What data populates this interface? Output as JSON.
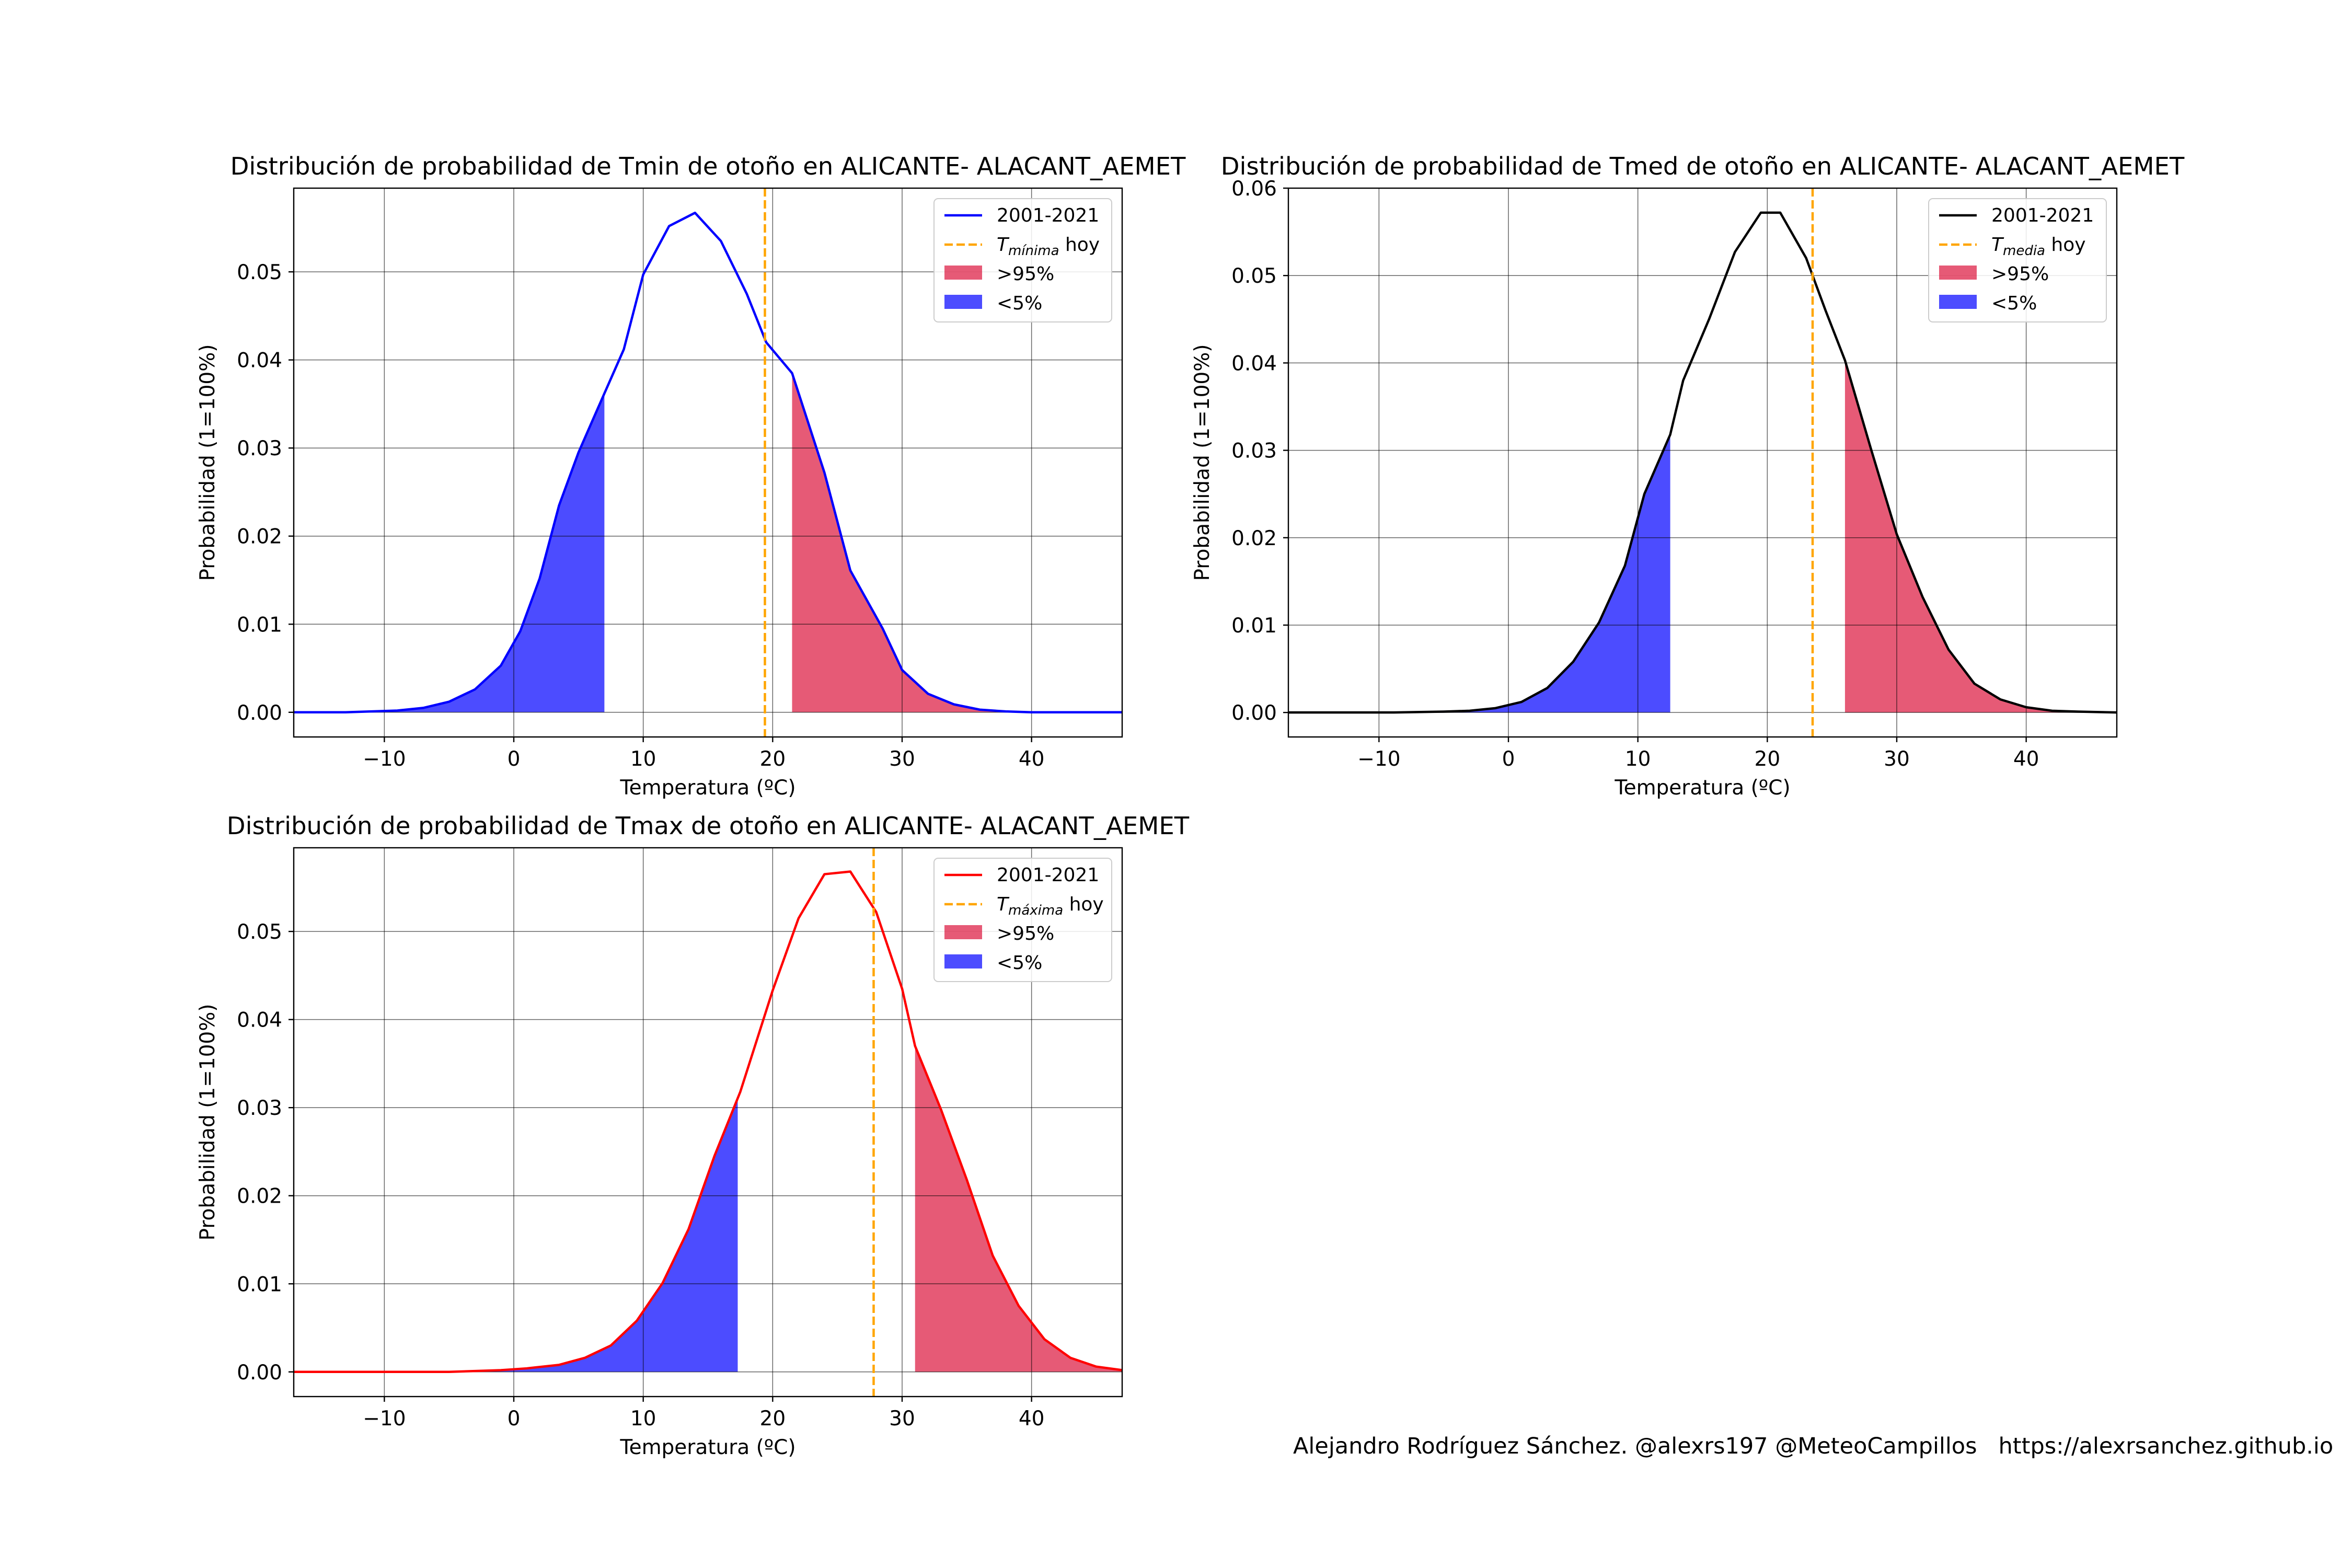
{
  "figure": {
    "credit": "Alejandro Rodríguez Sánchez. @alexrs197 @MeteoCampillos   https://alexrsanchez.github.io",
    "colors": {
      "above": "#dc143c",
      "below": "#0000ff",
      "today": "#ffa500"
    }
  },
  "chart_data": [
    {
      "type": "area",
      "title": "Distribución de probabilidad de Tmin de otoño en ALICANTE- ALACANT_AEMET",
      "xlabel": "Temperatura (ºC)",
      "ylabel": "Probabilidad (1=100%)",
      "xlim": [
        -17,
        47
      ],
      "ylim": [
        -0.0028,
        0.0595
      ],
      "xticks": [
        -10,
        0,
        10,
        20,
        30,
        40
      ],
      "xtick_labels": [
        "−10",
        "0",
        "10",
        "20",
        "30",
        "40"
      ],
      "yticks": [
        0.0,
        0.01,
        0.02,
        0.03,
        0.04,
        0.05
      ],
      "ytick_labels": [
        "0.00",
        "0.01",
        "0.02",
        "0.03",
        "0.04",
        "0.05"
      ],
      "grid": true,
      "legend_position": "top-right",
      "line_color": "#0000ff",
      "series": [
        {
          "name": "2001-2021",
          "x": [
            -17,
            -15,
            -13,
            -11,
            -9,
            -7,
            -5,
            -3,
            -1,
            0.5,
            2,
            3.5,
            5,
            7,
            8.5,
            10,
            12,
            14,
            16,
            18,
            19.5,
            21.5,
            24,
            26,
            28.5,
            30,
            32,
            34,
            36,
            38,
            40,
            42,
            44,
            47
          ],
          "y": [
            0,
            0,
            0,
            0.0001,
            0.0002,
            0.0005,
            0.0012,
            0.0026,
            0.0053,
            0.0092,
            0.0152,
            0.0235,
            0.0295,
            0.0362,
            0.0412,
            0.0497,
            0.0552,
            0.0567,
            0.0535,
            0.0475,
            0.042,
            0.0385,
            0.0272,
            0.0161,
            0.0095,
            0.0048,
            0.0021,
            0.0009,
            0.0003,
            0.0001,
            0,
            0,
            0,
            0
          ]
        }
      ],
      "today": {
        "label_subscript": "mínima",
        "label_prefix": "T",
        "label_suffix": " hoy",
        "x": 19.4
      },
      "band_above": {
        "label": ">95%",
        "from_x": 21.5
      },
      "band_below": {
        "label": "<5%",
        "to_x": 7
      }
    },
    {
      "type": "area",
      "title": "Distribución de probabilidad de Tmed de otoño en ALICANTE- ALACANT_AEMET",
      "xlabel": "Temperatura (ºC)",
      "ylabel": "Probabilidad (1=100%)",
      "xlim": [
        -17,
        47
      ],
      "ylim": [
        -0.0028,
        0.06
      ],
      "xticks": [
        -10,
        0,
        10,
        20,
        30,
        40
      ],
      "xtick_labels": [
        "−10",
        "0",
        "10",
        "20",
        "30",
        "40"
      ],
      "yticks": [
        0.0,
        0.01,
        0.02,
        0.03,
        0.04,
        0.05,
        0.06
      ],
      "ytick_labels": [
        "0.00",
        "0.01",
        "0.02",
        "0.03",
        "0.04",
        "0.05",
        "0.06"
      ],
      "grid": true,
      "legend_position": "top-right",
      "line_color": "#000000",
      "series": [
        {
          "name": "2001-2021",
          "x": [
            -17,
            -13,
            -9,
            -5,
            -3,
            -1,
            1,
            3,
            5,
            7,
            9,
            10.5,
            12.5,
            13.5,
            15.5,
            17.5,
            19.5,
            21,
            23,
            24.5,
            26,
            28,
            30,
            32,
            34,
            36,
            38,
            40,
            42,
            44,
            47
          ],
          "y": [
            0,
            0,
            0,
            0.0001,
            0.0002,
            0.0005,
            0.0012,
            0.0028,
            0.0058,
            0.0103,
            0.0168,
            0.025,
            0.0318,
            0.038,
            0.045,
            0.0527,
            0.0572,
            0.0572,
            0.052,
            0.046,
            0.0403,
            0.0302,
            0.0204,
            0.0132,
            0.0072,
            0.0033,
            0.0015,
            0.0006,
            0.0002,
            0.0001,
            0
          ]
        }
      ],
      "today": {
        "label_subscript": "media",
        "label_prefix": "T",
        "label_suffix": " hoy",
        "x": 23.5
      },
      "band_above": {
        "label": ">95%",
        "from_x": 26
      },
      "band_below": {
        "label": "<5%",
        "to_x": 12.5
      }
    },
    {
      "type": "area",
      "title": "Distribución de probabilidad de Tmax de otoño en ALICANTE- ALACANT_AEMET",
      "xlabel": "Temperatura (ºC)",
      "ylabel": "Probabilidad (1=100%)",
      "xlim": [
        -17,
        47
      ],
      "ylim": [
        -0.0028,
        0.0595
      ],
      "xticks": [
        -10,
        0,
        10,
        20,
        30,
        40
      ],
      "xtick_labels": [
        "−10",
        "0",
        "10",
        "20",
        "30",
        "40"
      ],
      "yticks": [
        0.0,
        0.01,
        0.02,
        0.03,
        0.04,
        0.05
      ],
      "ytick_labels": [
        "0.00",
        "0.01",
        "0.02",
        "0.03",
        "0.04",
        "0.05"
      ],
      "grid": true,
      "legend_position": "top-right",
      "line_color": "#ff0000",
      "series": [
        {
          "name": "2001-2021",
          "x": [
            -17,
            -13,
            -9,
            -5,
            -3,
            -1,
            1,
            3.5,
            5.5,
            7.5,
            9.5,
            11.5,
            13.5,
            15.5,
            17.5,
            20,
            22,
            24,
            26,
            28,
            30,
            31,
            33,
            35,
            37,
            39,
            41,
            43,
            45,
            47
          ],
          "y": [
            0,
            0,
            0,
            0,
            0.0001,
            0.0002,
            0.0004,
            0.0008,
            0.0016,
            0.003,
            0.0058,
            0.0101,
            0.0162,
            0.0245,
            0.0318,
            0.0433,
            0.0515,
            0.0565,
            0.0568,
            0.0522,
            0.0435,
            0.037,
            0.0298,
            0.0218,
            0.0132,
            0.0075,
            0.0037,
            0.0016,
            0.0006,
            0.0002
          ]
        }
      ],
      "today": {
        "label_subscript": "máxima",
        "label_prefix": "T",
        "label_suffix": " hoy",
        "x": 27.8
      },
      "band_above": {
        "label": ">95%",
        "from_x": 31
      },
      "band_below": {
        "label": "<5%",
        "to_x": 17.3
      }
    }
  ]
}
